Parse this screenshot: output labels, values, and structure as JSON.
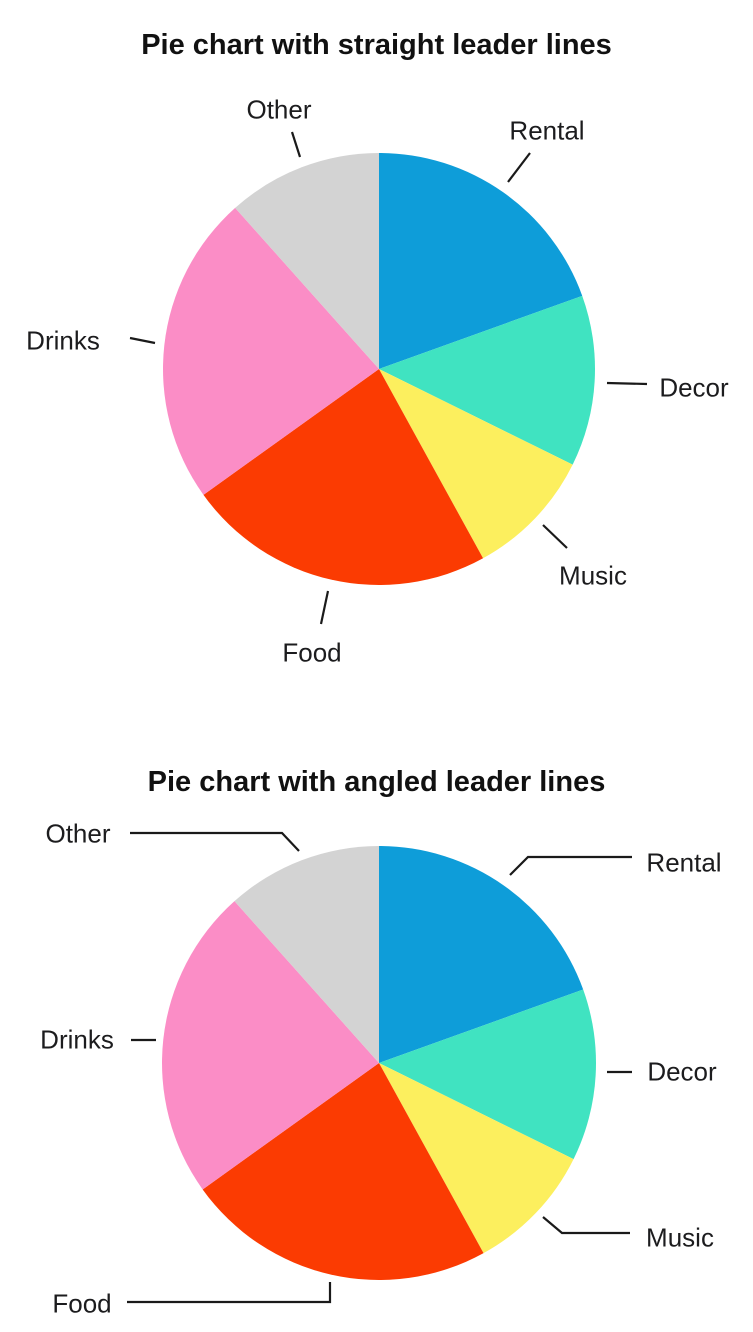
{
  "page_background": "#ffffff",
  "text_color": "#1c1c1e",
  "leader_line_color": "#1a1a1a",
  "chart_data": [
    {
      "type": "pie",
      "title": "Pie chart with straight leader lines",
      "leader_line_style": "straight",
      "labels": [
        "Rental",
        "Decor",
        "Music",
        "Food",
        "Drinks",
        "Other"
      ],
      "values": [
        19.5,
        12.8,
        9.7,
        23.1,
        23.3,
        11.6
      ],
      "units": "percent",
      "colors": [
        "#0E9DD9",
        "#40E3C1",
        "#FCEF5E",
        "#FB3B02",
        "#FB8DC6",
        "#D3D3D3"
      ],
      "start_angle_deg": 0,
      "direction": "clockwise",
      "legend": "none",
      "data_point_labels": "category names outside slices with leader lines"
    },
    {
      "type": "pie",
      "title": "Pie chart with angled leader lines",
      "leader_line_style": "angled",
      "labels": [
        "Rental",
        "Decor",
        "Music",
        "Food",
        "Drinks",
        "Other"
      ],
      "values": [
        19.5,
        12.8,
        9.7,
        23.1,
        23.3,
        11.6
      ],
      "units": "percent",
      "colors": [
        "#0E9DD9",
        "#40E3C1",
        "#FCEF5E",
        "#FB3B02",
        "#FB8DC6",
        "#D3D3D3"
      ],
      "start_angle_deg": 0,
      "direction": "clockwise",
      "legend": "none",
      "data_point_labels": "category names outside slices with elbowed leader lines"
    }
  ]
}
